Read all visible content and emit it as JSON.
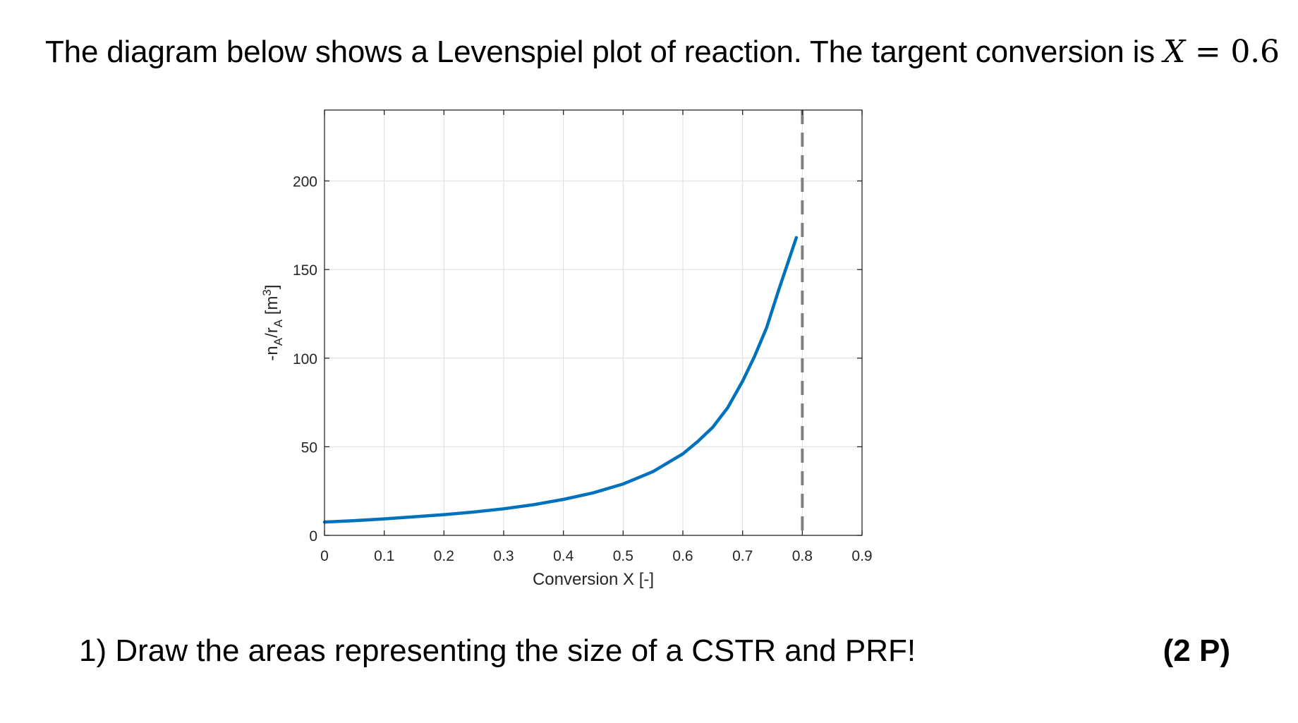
{
  "intro": {
    "text": "The diagram below shows a Levenspiel plot of reaction. The targent conversion is",
    "math_var": "X",
    "math_eq": " = 0.6"
  },
  "question": {
    "text": "1)  Draw the areas representing the size of a CSTR and PRF!",
    "points": "(2 P)"
  },
  "chart_data": {
    "type": "line",
    "xlabel": "Conversion X [-]",
    "ylabel_parts": [
      "-n",
      "A",
      "/r",
      "A",
      " [m",
      "3",
      "]"
    ],
    "xlim": [
      0,
      0.9
    ],
    "ylim": [
      0,
      240
    ],
    "x_ticks": [
      0,
      0.1,
      0.2,
      0.3,
      0.4,
      0.5,
      0.6,
      0.7,
      0.8,
      0.9
    ],
    "x_tick_labels": [
      "0",
      "0.1",
      "0.2",
      "0.3",
      "0.4",
      "0.5",
      "0.6",
      "0.7",
      "0.8",
      "0.9"
    ],
    "y_ticks": [
      0,
      50,
      100,
      150,
      200
    ],
    "y_tick_labels": [
      "0",
      "50",
      "100",
      "150",
      "200"
    ],
    "grid": true,
    "series": [
      {
        "color": "#0072BD",
        "x": [
          0,
          0.05,
          0.1,
          0.15,
          0.2,
          0.25,
          0.3,
          0.35,
          0.4,
          0.45,
          0.5,
          0.55,
          0.6,
          0.625,
          0.65,
          0.675,
          0.7,
          0.72,
          0.74,
          0.76,
          0.77,
          0.78,
          0.79
        ],
        "y": [
          7.5,
          8.3,
          9.3,
          10.5,
          11.7,
          13.2,
          15,
          17.3,
          20.3,
          24,
          29,
          36,
          46,
          53,
          61,
          72,
          87,
          101,
          117,
          138,
          148,
          158,
          168
        ]
      }
    ],
    "vlines": [
      {
        "x": 0.8,
        "color": "#808080",
        "style": "dashed"
      }
    ]
  }
}
